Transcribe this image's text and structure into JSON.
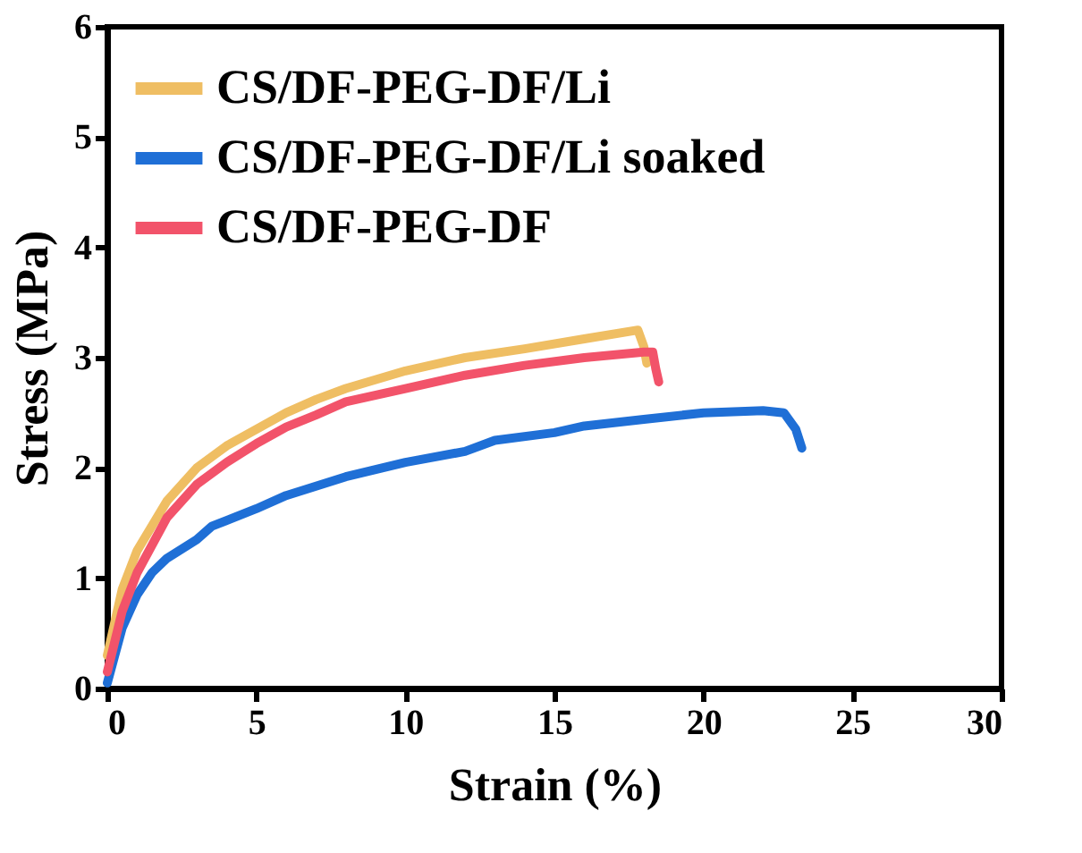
{
  "chart_data": {
    "type": "line",
    "xlabel": "Strain (%)",
    "ylabel": "Stress (MPa)",
    "xlim": [
      0,
      30
    ],
    "xticks": [
      0,
      5,
      10,
      15,
      20,
      25,
      30
    ],
    "ylim": [
      0,
      6
    ],
    "yticks": [
      0,
      1,
      2,
      3,
      4,
      5,
      6
    ],
    "grid": false,
    "legend": "top left",
    "line_style": "solid",
    "marker": "none",
    "series": [
      {
        "name": "CS/DF-PEG-DF/Li",
        "color": "#efbe63",
        "x": [
          0,
          0.5,
          1,
          2,
          3,
          4,
          5,
          6,
          7,
          8,
          10,
          12,
          14,
          16,
          17.8,
          18,
          18.1
        ],
        "values": [
          0.3,
          0.9,
          1.25,
          1.7,
          2.0,
          2.2,
          2.35,
          2.5,
          2.62,
          2.72,
          2.88,
          3.0,
          3.08,
          3.17,
          3.25,
          3.1,
          2.95
        ]
      },
      {
        "name": "CS/DF-PEG-DF/Li soaked",
        "color": "#1f6fd6",
        "x": [
          0,
          0.5,
          1,
          1.5,
          2,
          3,
          3.5,
          5,
          6,
          8,
          10,
          12,
          13,
          15,
          16,
          18,
          20,
          22,
          22.7,
          23.1,
          23.3
        ],
        "values": [
          0.05,
          0.55,
          0.85,
          1.05,
          1.18,
          1.35,
          1.47,
          1.63,
          1.75,
          1.92,
          2.05,
          2.15,
          2.25,
          2.32,
          2.38,
          2.44,
          2.5,
          2.52,
          2.5,
          2.35,
          2.18
        ]
      },
      {
        "name": "CS/DF-PEG-DF",
        "color": "#f2536a",
        "x": [
          0,
          0.5,
          1,
          2,
          3,
          4,
          5,
          6,
          7,
          8,
          10,
          12,
          14,
          16,
          18,
          18.3,
          18.4,
          18.5
        ],
        "values": [
          0.15,
          0.7,
          1.05,
          1.55,
          1.85,
          2.05,
          2.22,
          2.37,
          2.48,
          2.6,
          2.72,
          2.84,
          2.93,
          3.0,
          3.05,
          3.05,
          2.9,
          2.78
        ]
      }
    ]
  }
}
